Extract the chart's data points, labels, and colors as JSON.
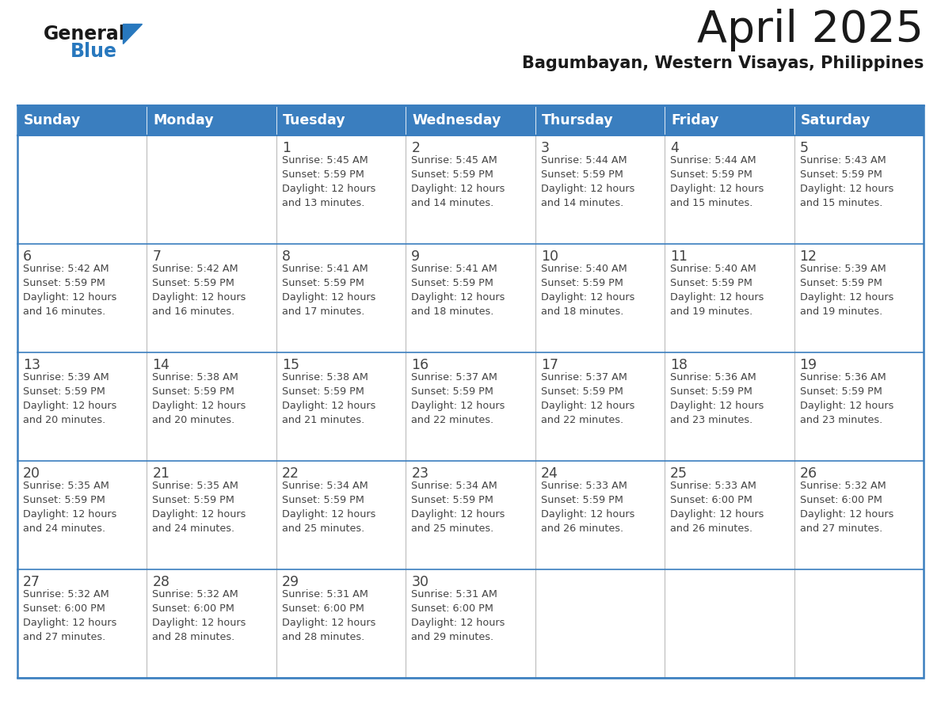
{
  "title": "April 2025",
  "subtitle": "Bagumbayan, Western Visayas, Philippines",
  "days_of_week": [
    "Sunday",
    "Monday",
    "Tuesday",
    "Wednesday",
    "Thursday",
    "Friday",
    "Saturday"
  ],
  "header_bg": "#3A7EBF",
  "header_text": "#FFFFFF",
  "row_bg": "#FFFFFF",
  "border_color": "#3A7EBF",
  "cell_line_color": "#AAAAAA",
  "text_color": "#444444",
  "title_color": "#1A1A1A",
  "subtitle_color": "#1A1A1A",
  "logo_general_color": "#1A1A1A",
  "logo_blue_color": "#2878BE",
  "calendar_data": [
    [
      {
        "day": null,
        "info": ""
      },
      {
        "day": null,
        "info": ""
      },
      {
        "day": 1,
        "info": "Sunrise: 5:45 AM\nSunset: 5:59 PM\nDaylight: 12 hours\nand 13 minutes."
      },
      {
        "day": 2,
        "info": "Sunrise: 5:45 AM\nSunset: 5:59 PM\nDaylight: 12 hours\nand 14 minutes."
      },
      {
        "day": 3,
        "info": "Sunrise: 5:44 AM\nSunset: 5:59 PM\nDaylight: 12 hours\nand 14 minutes."
      },
      {
        "day": 4,
        "info": "Sunrise: 5:44 AM\nSunset: 5:59 PM\nDaylight: 12 hours\nand 15 minutes."
      },
      {
        "day": 5,
        "info": "Sunrise: 5:43 AM\nSunset: 5:59 PM\nDaylight: 12 hours\nand 15 minutes."
      }
    ],
    [
      {
        "day": 6,
        "info": "Sunrise: 5:42 AM\nSunset: 5:59 PM\nDaylight: 12 hours\nand 16 minutes."
      },
      {
        "day": 7,
        "info": "Sunrise: 5:42 AM\nSunset: 5:59 PM\nDaylight: 12 hours\nand 16 minutes."
      },
      {
        "day": 8,
        "info": "Sunrise: 5:41 AM\nSunset: 5:59 PM\nDaylight: 12 hours\nand 17 minutes."
      },
      {
        "day": 9,
        "info": "Sunrise: 5:41 AM\nSunset: 5:59 PM\nDaylight: 12 hours\nand 18 minutes."
      },
      {
        "day": 10,
        "info": "Sunrise: 5:40 AM\nSunset: 5:59 PM\nDaylight: 12 hours\nand 18 minutes."
      },
      {
        "day": 11,
        "info": "Sunrise: 5:40 AM\nSunset: 5:59 PM\nDaylight: 12 hours\nand 19 minutes."
      },
      {
        "day": 12,
        "info": "Sunrise: 5:39 AM\nSunset: 5:59 PM\nDaylight: 12 hours\nand 19 minutes."
      }
    ],
    [
      {
        "day": 13,
        "info": "Sunrise: 5:39 AM\nSunset: 5:59 PM\nDaylight: 12 hours\nand 20 minutes."
      },
      {
        "day": 14,
        "info": "Sunrise: 5:38 AM\nSunset: 5:59 PM\nDaylight: 12 hours\nand 20 minutes."
      },
      {
        "day": 15,
        "info": "Sunrise: 5:38 AM\nSunset: 5:59 PM\nDaylight: 12 hours\nand 21 minutes."
      },
      {
        "day": 16,
        "info": "Sunrise: 5:37 AM\nSunset: 5:59 PM\nDaylight: 12 hours\nand 22 minutes."
      },
      {
        "day": 17,
        "info": "Sunrise: 5:37 AM\nSunset: 5:59 PM\nDaylight: 12 hours\nand 22 minutes."
      },
      {
        "day": 18,
        "info": "Sunrise: 5:36 AM\nSunset: 5:59 PM\nDaylight: 12 hours\nand 23 minutes."
      },
      {
        "day": 19,
        "info": "Sunrise: 5:36 AM\nSunset: 5:59 PM\nDaylight: 12 hours\nand 23 minutes."
      }
    ],
    [
      {
        "day": 20,
        "info": "Sunrise: 5:35 AM\nSunset: 5:59 PM\nDaylight: 12 hours\nand 24 minutes."
      },
      {
        "day": 21,
        "info": "Sunrise: 5:35 AM\nSunset: 5:59 PM\nDaylight: 12 hours\nand 24 minutes."
      },
      {
        "day": 22,
        "info": "Sunrise: 5:34 AM\nSunset: 5:59 PM\nDaylight: 12 hours\nand 25 minutes."
      },
      {
        "day": 23,
        "info": "Sunrise: 5:34 AM\nSunset: 5:59 PM\nDaylight: 12 hours\nand 25 minutes."
      },
      {
        "day": 24,
        "info": "Sunrise: 5:33 AM\nSunset: 5:59 PM\nDaylight: 12 hours\nand 26 minutes."
      },
      {
        "day": 25,
        "info": "Sunrise: 5:33 AM\nSunset: 6:00 PM\nDaylight: 12 hours\nand 26 minutes."
      },
      {
        "day": 26,
        "info": "Sunrise: 5:32 AM\nSunset: 6:00 PM\nDaylight: 12 hours\nand 27 minutes."
      }
    ],
    [
      {
        "day": 27,
        "info": "Sunrise: 5:32 AM\nSunset: 6:00 PM\nDaylight: 12 hours\nand 27 minutes."
      },
      {
        "day": 28,
        "info": "Sunrise: 5:32 AM\nSunset: 6:00 PM\nDaylight: 12 hours\nand 28 minutes."
      },
      {
        "day": 29,
        "info": "Sunrise: 5:31 AM\nSunset: 6:00 PM\nDaylight: 12 hours\nand 28 minutes."
      },
      {
        "day": 30,
        "info": "Sunrise: 5:31 AM\nSunset: 6:00 PM\nDaylight: 12 hours\nand 29 minutes."
      },
      {
        "day": null,
        "info": ""
      },
      {
        "day": null,
        "info": ""
      },
      {
        "day": null,
        "info": ""
      }
    ]
  ]
}
